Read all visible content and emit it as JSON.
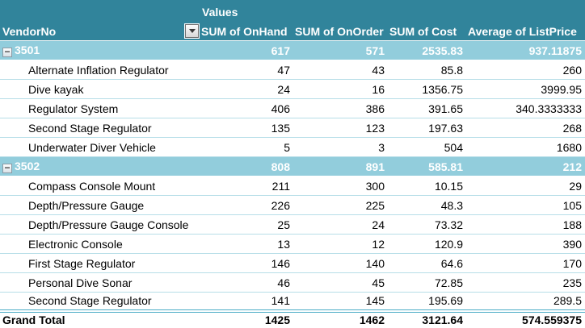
{
  "colors": {
    "header_bg": "#31849B",
    "subtotal_bg": "#92CDDC",
    "row_divider": "#B7DEE8",
    "grand_total_border": "#4BACC6",
    "header_text": "#FFFFFF",
    "body_text": "#000000"
  },
  "icons": {
    "group_collapse": "−",
    "filter_dropdown": "dropdown-arrow"
  },
  "header": {
    "values_label": "Values",
    "row_label": "VendorNo",
    "columns": [
      "SUM of OnHand",
      "SUM of OnOrder",
      "SUM of Cost",
      "Average of ListPrice"
    ]
  },
  "groups": [
    {
      "vendor": "3501",
      "totals": [
        "617",
        "571",
        "2535.83",
        "937.11875"
      ],
      "items": [
        {
          "name": "Alternate Inflation Regulator",
          "values": [
            "47",
            "43",
            "85.8",
            "260"
          ]
        },
        {
          "name": "Dive kayak",
          "values": [
            "24",
            "16",
            "1356.75",
            "3999.95"
          ]
        },
        {
          "name": "Regulator System",
          "values": [
            "406",
            "386",
            "391.65",
            "340.3333333"
          ]
        },
        {
          "name": "Second Stage Regulator",
          "values": [
            "135",
            "123",
            "197.63",
            "268"
          ]
        },
        {
          "name": "Underwater Diver Vehicle",
          "values": [
            "5",
            "3",
            "504",
            "1680"
          ]
        }
      ]
    },
    {
      "vendor": "3502",
      "totals": [
        "808",
        "891",
        "585.81",
        "212"
      ],
      "items": [
        {
          "name": "Compass Console Mount",
          "values": [
            "211",
            "300",
            "10.15",
            "29"
          ]
        },
        {
          "name": "Depth/Pressure Gauge",
          "values": [
            "226",
            "225",
            "48.3",
            "105"
          ]
        },
        {
          "name": "Depth/Pressure Gauge Console",
          "values": [
            "25",
            "24",
            "73.32",
            "188"
          ]
        },
        {
          "name": "Electronic Console",
          "values": [
            "13",
            "12",
            "120.9",
            "390"
          ]
        },
        {
          "name": "First Stage Regulator",
          "values": [
            "146",
            "140",
            "64.6",
            "170"
          ]
        },
        {
          "name": "Personal Dive Sonar",
          "values": [
            "46",
            "45",
            "72.85",
            "235"
          ]
        },
        {
          "name": "Second Stage Regulator",
          "values": [
            "141",
            "145",
            "195.69",
            "289.5"
          ]
        }
      ]
    }
  ],
  "grand_total": {
    "label": "Grand Total",
    "values": [
      "1425",
      "1462",
      "3121.64",
      "574.559375"
    ]
  }
}
